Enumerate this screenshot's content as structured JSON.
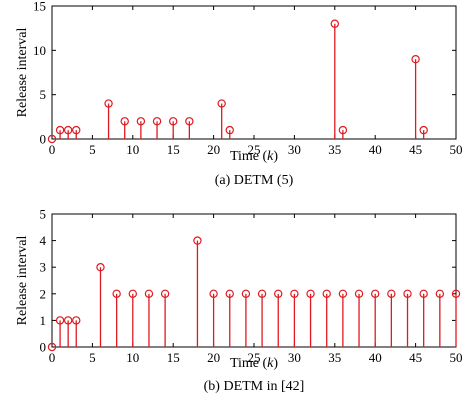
{
  "chart_data": [
    {
      "type": "stem",
      "caption": "(a) DETM (5)",
      "xlabel": "Time",
      "xlabel_var": "k",
      "ylabel": "Release interval",
      "xlim": [
        0,
        50
      ],
      "ylim": [
        0,
        15
      ],
      "xticks": [
        0,
        5,
        10,
        15,
        20,
        25,
        30,
        35,
        40,
        45,
        50
      ],
      "yticks": [
        0,
        5,
        10,
        15
      ],
      "grid": false,
      "color": "#e0191f",
      "series": [
        {
          "x": [
            0,
            1,
            2,
            3,
            7,
            9,
            11,
            13,
            15,
            17,
            21,
            22,
            35,
            36,
            45,
            46
          ],
          "values": [
            0,
            1,
            1,
            1,
            4,
            2,
            2,
            2,
            2,
            2,
            4,
            1,
            13,
            1,
            9,
            1
          ]
        }
      ]
    },
    {
      "type": "stem",
      "caption": "(b) DETM in [42]",
      "xlabel": "Time",
      "xlabel_var": "k",
      "ylabel": "Release interval",
      "xlim": [
        0,
        50
      ],
      "ylim": [
        0,
        5
      ],
      "xticks": [
        0,
        5,
        10,
        15,
        20,
        25,
        30,
        35,
        40,
        45,
        50
      ],
      "yticks": [
        0,
        1,
        2,
        3,
        4,
        5
      ],
      "grid": false,
      "color": "#e0191f",
      "series": [
        {
          "x": [
            0,
            1,
            2,
            3,
            6,
            8,
            10,
            12,
            14,
            18,
            20,
            22,
            24,
            26,
            28,
            30,
            32,
            34,
            36,
            38,
            40,
            42,
            44,
            46,
            48,
            50
          ],
          "values": [
            0,
            1,
            1,
            1,
            3,
            2,
            2,
            2,
            2,
            4,
            2,
            2,
            2,
            2,
            2,
            2,
            2,
            2,
            2,
            2,
            2,
            2,
            2,
            2,
            2,
            2
          ]
        }
      ]
    }
  ]
}
